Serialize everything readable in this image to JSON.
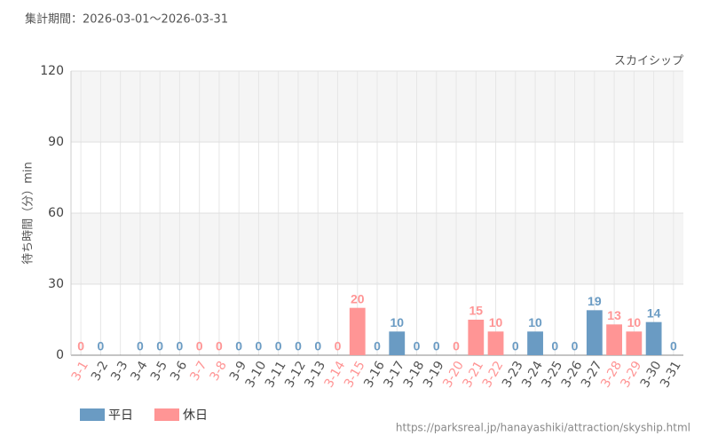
{
  "chart_data": {
    "type": "bar",
    "title": "集計期間：2026-03-01～2026-03-31",
    "annotation": "スカイシップ",
    "y_label": "待ち時間（分）min",
    "source": "https://parksreal.jp/hanayashiki/attraction/skyship.html",
    "categories": [
      "3-1",
      "3-2",
      "3-3",
      "3-4",
      "3-5",
      "3-6",
      "3-7",
      "3-8",
      "3-9",
      "3-10",
      "3-11",
      "3-12",
      "3-13",
      "3-14",
      "3-15",
      "3-16",
      "3-17",
      "3-18",
      "3-19",
      "3-20",
      "3-21",
      "3-22",
      "3-23",
      "3-24",
      "3-25",
      "3-26",
      "3-27",
      "3-28",
      "3-29",
      "3-30",
      "3-31"
    ],
    "values": [
      0,
      0,
      null,
      0,
      0,
      0,
      0,
      0,
      0,
      0,
      0,
      0,
      0,
      0,
      20,
      0,
      10,
      0,
      0,
      0,
      15,
      10,
      0,
      10,
      0,
      0,
      19,
      13,
      10,
      14,
      0
    ],
    "groups": [
      1,
      0,
      0,
      0,
      0,
      0,
      1,
      1,
      0,
      0,
      0,
      0,
      0,
      1,
      1,
      0,
      0,
      0,
      0,
      1,
      1,
      1,
      0,
      0,
      0,
      0,
      0,
      1,
      1,
      0,
      0
    ],
    "legend": [
      {
        "name": "平日",
        "color": "#6a9bc3"
      },
      {
        "name": "休日",
        "color": "#ff9595"
      }
    ],
    "ylim": [
      0,
      120
    ],
    "yticks": [
      0,
      30,
      60,
      90,
      120
    ],
    "grid": true
  }
}
